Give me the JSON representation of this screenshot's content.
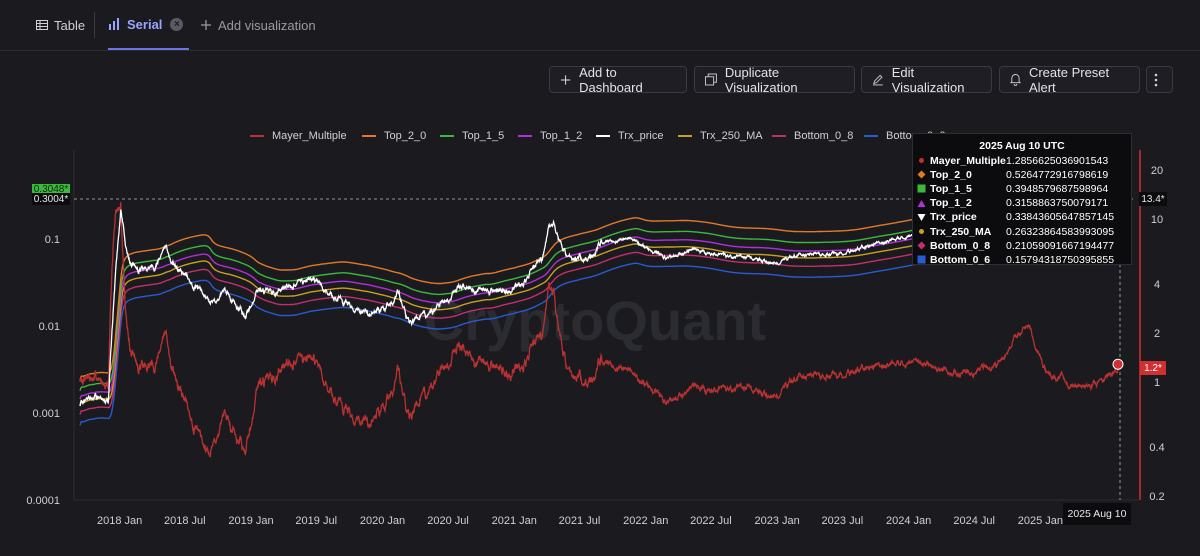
{
  "tabs": [
    {
      "label": "Table",
      "icon": "table-icon"
    },
    {
      "label": "Serial",
      "icon": "bar-chart-icon"
    },
    {
      "label": "Add visualization",
      "icon": "plus-icon"
    }
  ],
  "toolbar": {
    "add_to_dashboard": "Add to Dashboard",
    "duplicate": "Duplicate Visualization",
    "edit": "Edit Visualization",
    "alert": "Create Preset Alert",
    "more_icon": "more-vertical-icon"
  },
  "watermark": "CryptoQuant",
  "legend": [
    {
      "name": "Mayer_Multiple",
      "color": "#b83232"
    },
    {
      "name": "Top_2_0",
      "color": "#e07a2a"
    },
    {
      "name": "Top_1_5",
      "color": "#3db83d"
    },
    {
      "name": "Top_1_2",
      "color": "#b030d8"
    },
    {
      "name": "Trx_price",
      "color": "#ffffff"
    },
    {
      "name": "Trx_250_MA",
      "color": "#c9a020"
    },
    {
      "name": "Bottom_0_8",
      "color": "#c0306e"
    },
    {
      "name": "Bottom_0_6",
      "color": "#2a5ad0"
    }
  ],
  "tooltip": {
    "date": "2025 Aug 10 UTC",
    "rows": [
      {
        "name": "Mayer_Multiple",
        "value": "1.2856625036901543",
        "color": "#c03030",
        "marker": "dot"
      },
      {
        "name": "Top_2_0",
        "value": "0.5264772916798619",
        "color": "#e07a2a",
        "marker": "diamond"
      },
      {
        "name": "Top_1_5",
        "value": "0.3948579687598964",
        "color": "#3db83d",
        "marker": "square"
      },
      {
        "name": "Top_1_2",
        "value": "0.3158863750079171",
        "color": "#b030d8",
        "marker": "triangle-up"
      },
      {
        "name": "Trx_price",
        "value": "0.33843605647857145",
        "color": "#ffffff",
        "marker": "triangle-down"
      },
      {
        "name": "Trx_250_MA",
        "value": "0.26323864583993095",
        "color": "#c9a020",
        "marker": "dot"
      },
      {
        "name": "Bottom_0_8",
        "value": "0.21059091667194477",
        "color": "#c0306e",
        "marker": "diamond"
      },
      {
        "name": "Bottom_0_6",
        "value": "0.15794318750395855",
        "color": "#2a5ad0",
        "marker": "square"
      }
    ]
  },
  "crosshair": {
    "price_label": "0.3004*",
    "price_tag_top": "0.3048*",
    "right_label": "13.4*",
    "mm_label": "1.2*",
    "date_label": "2025 Aug 10"
  },
  "chart_data": {
    "type": "line",
    "x_scale": "time",
    "y_left": {
      "scale": "log",
      "min": 0.0001,
      "max": 0.45,
      "ticks": [
        "0.0001",
        "0.001",
        "0.01",
        "0.1"
      ]
    },
    "y_right": {
      "scale": "log",
      "min": 0.2,
      "max": 20,
      "ticks": [
        "0.2",
        "0.4",
        "1",
        "2",
        "4",
        "10",
        "20"
      ]
    },
    "x_ticks": [
      "2018 Jan",
      "2018 Jul",
      "2019 Jan",
      "2019 Jul",
      "2020 Jan",
      "2020 Jul",
      "2021 Jan",
      "2021 Jul",
      "2022 Jan",
      "2022 Jul",
      "2023 Jan",
      "2023 Jul",
      "2024 Jan",
      "2024 Jul",
      "2025 Jan"
    ],
    "x_range": [
      "2017-09-13",
      "2025-08-10"
    ],
    "price_anchors": [
      [
        "2017-09-13",
        0.0012
      ],
      [
        "2017-10-15",
        0.0016
      ],
      [
        "2017-12-01",
        0.0015
      ],
      [
        "2017-12-20",
        0.04
      ],
      [
        "2018-01-04",
        0.22
      ],
      [
        "2018-01-20",
        0.07
      ],
      [
        "2018-02-20",
        0.045
      ],
      [
        "2018-04-10",
        0.05
      ],
      [
        "2018-05-05",
        0.09
      ],
      [
        "2018-06-01",
        0.05
      ],
      [
        "2018-07-15",
        0.032
      ],
      [
        "2018-09-10",
        0.02
      ],
      [
        "2018-10-20",
        0.024
      ],
      [
        "2018-12-15",
        0.012
      ],
      [
        "2019-01-20",
        0.025
      ],
      [
        "2019-03-01",
        0.024
      ],
      [
        "2019-05-01",
        0.03
      ],
      [
        "2019-06-25",
        0.035
      ],
      [
        "2019-08-01",
        0.025
      ],
      [
        "2019-10-01",
        0.016
      ],
      [
        "2019-12-01",
        0.014
      ],
      [
        "2020-01-15",
        0.017
      ],
      [
        "2020-02-15",
        0.025
      ],
      [
        "2020-03-15",
        0.01
      ],
      [
        "2020-04-20",
        0.014
      ],
      [
        "2020-06-01",
        0.017
      ],
      [
        "2020-08-15",
        0.031
      ],
      [
        "2020-09-20",
        0.027
      ],
      [
        "2020-11-15",
        0.027
      ],
      [
        "2020-12-20",
        0.029
      ],
      [
        "2021-01-20",
        0.03
      ],
      [
        "2021-02-20",
        0.05
      ],
      [
        "2021-03-20",
        0.06
      ],
      [
        "2021-04-05",
        0.13
      ],
      [
        "2021-04-20",
        0.15
      ],
      [
        "2021-05-25",
        0.07
      ],
      [
        "2021-07-15",
        0.055
      ],
      [
        "2021-09-01",
        0.09
      ],
      [
        "2021-10-10",
        0.097
      ],
      [
        "2021-11-20",
        0.1
      ],
      [
        "2022-01-01",
        0.08
      ],
      [
        "2022-03-01",
        0.06
      ],
      [
        "2022-05-15",
        0.075
      ],
      [
        "2022-07-01",
        0.065
      ],
      [
        "2022-10-01",
        0.062
      ],
      [
        "2022-12-20",
        0.052
      ],
      [
        "2023-03-01",
        0.065
      ],
      [
        "2023-06-20",
        0.07
      ],
      [
        "2023-09-01",
        0.08
      ],
      [
        "2023-12-01",
        0.105
      ],
      [
        "2024-03-01",
        0.12
      ],
      [
        "2024-06-01",
        0.125
      ],
      [
        "2024-09-01",
        0.155
      ],
      [
        "2024-12-03",
        0.4
      ],
      [
        "2025-01-15",
        0.24
      ],
      [
        "2025-04-10",
        0.24
      ],
      [
        "2025-06-15",
        0.275
      ],
      [
        "2025-08-10",
        0.3384
      ]
    ],
    "series_rule": "Trx_250_MA is the 250-day mean of Trx_price; Top_2_0, Top_1_5, Top_1_2, Bottom_0_8 and Bottom_0_6 equal Trx_250_MA times 2.0, 1.5, 1.2, 0.8 and 0.6; Mayer_Multiple equals Trx_price divided by Trx_250_MA and is read on the right axis"
  }
}
